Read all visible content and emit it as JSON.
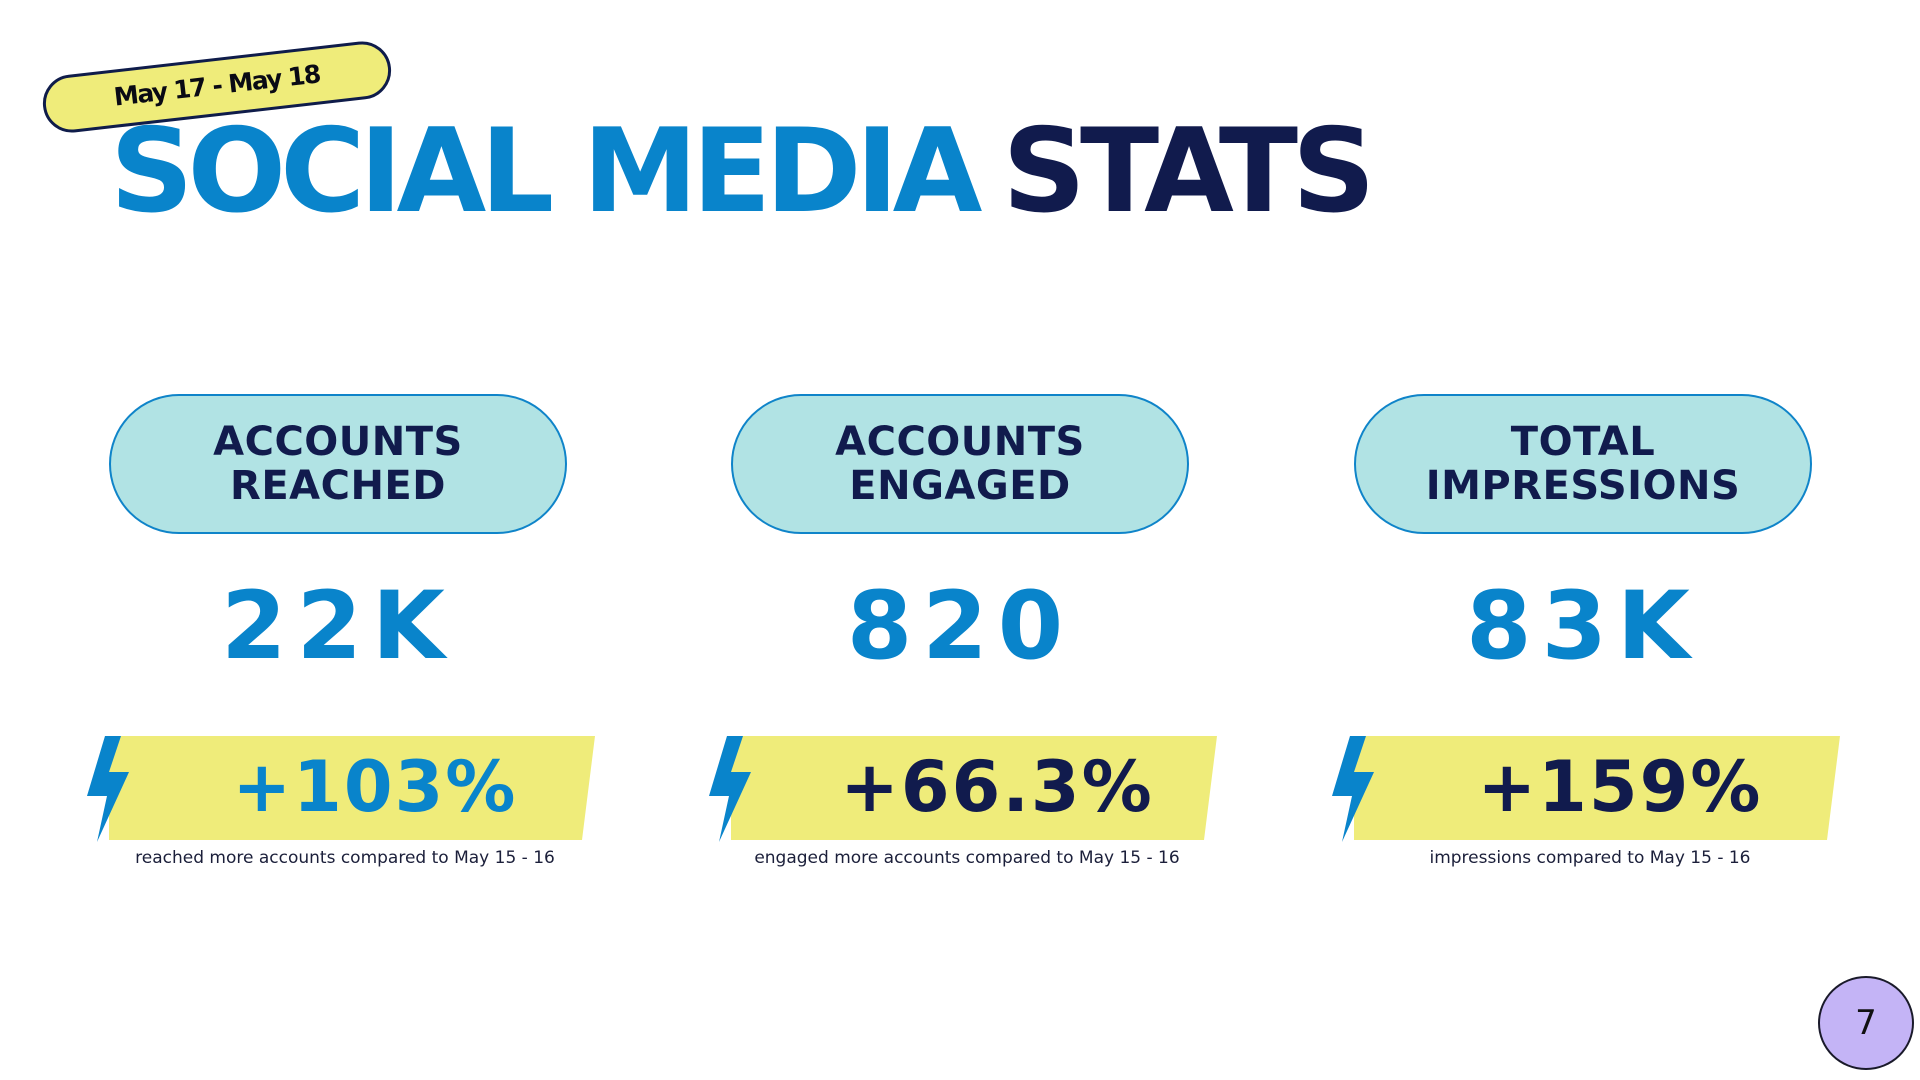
{
  "date_range": "May 17 - May 18",
  "title": {
    "part1": "SOCIAL MEDIA",
    "part2": "STATS"
  },
  "stats": [
    {
      "label_line1": "ACCOUNTS",
      "label_line2": "REACHED",
      "value": "22K",
      "change": "+103%",
      "caption": "reached more accounts compared to May 15 - 16"
    },
    {
      "label_line1": "ACCOUNTS",
      "label_line2": "ENGAGED",
      "value": "820",
      "change": "+66.3%",
      "caption": "engaged more accounts compared to May 15 - 16"
    },
    {
      "label_line1": "TOTAL",
      "label_line2": "IMPRESSIONS",
      "value": "83K",
      "change": "+159%",
      "caption": "impressions compared to May 15 - 16"
    }
  ],
  "page_number": "7",
  "colors": {
    "brand_blue": "#0984cb",
    "navy": "#111b4d",
    "yellow": "#efec7a",
    "pill_teal": "#b1e3e4",
    "badge_purple": "#c4b4f6"
  },
  "icons": {
    "bolt": "lightning-bolt-icon"
  }
}
